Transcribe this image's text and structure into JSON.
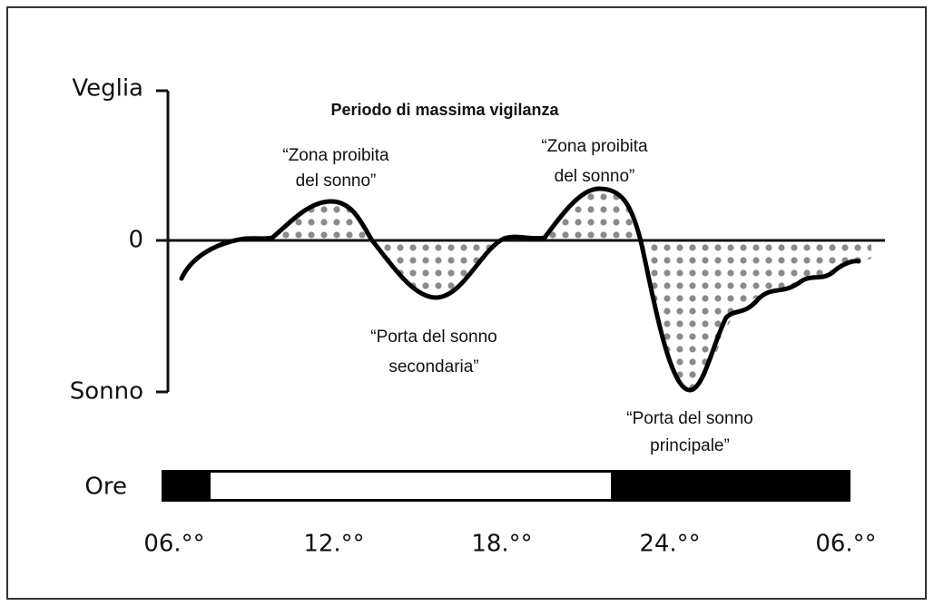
{
  "axis": {
    "top": "Veglia",
    "middle": "0",
    "bottom": "Sonno"
  },
  "title": "Periodo di massima vigilanza",
  "annotations": [
    {
      "lines": [
        "“Zona proibita",
        "del sonno”"
      ]
    },
    {
      "lines": [
        "“Zona proibita",
        "del sonno”"
      ]
    },
    {
      "lines": [
        "“Porta del sonno",
        "secondaria”"
      ]
    },
    {
      "lines": [
        "“Porta del sonno",
        "principale”"
      ]
    }
  ],
  "hours": {
    "label": "Ore",
    "ticks": [
      "06.°°",
      "12.°°",
      "18.°°",
      "24.°°",
      "06.°°"
    ]
  }
}
